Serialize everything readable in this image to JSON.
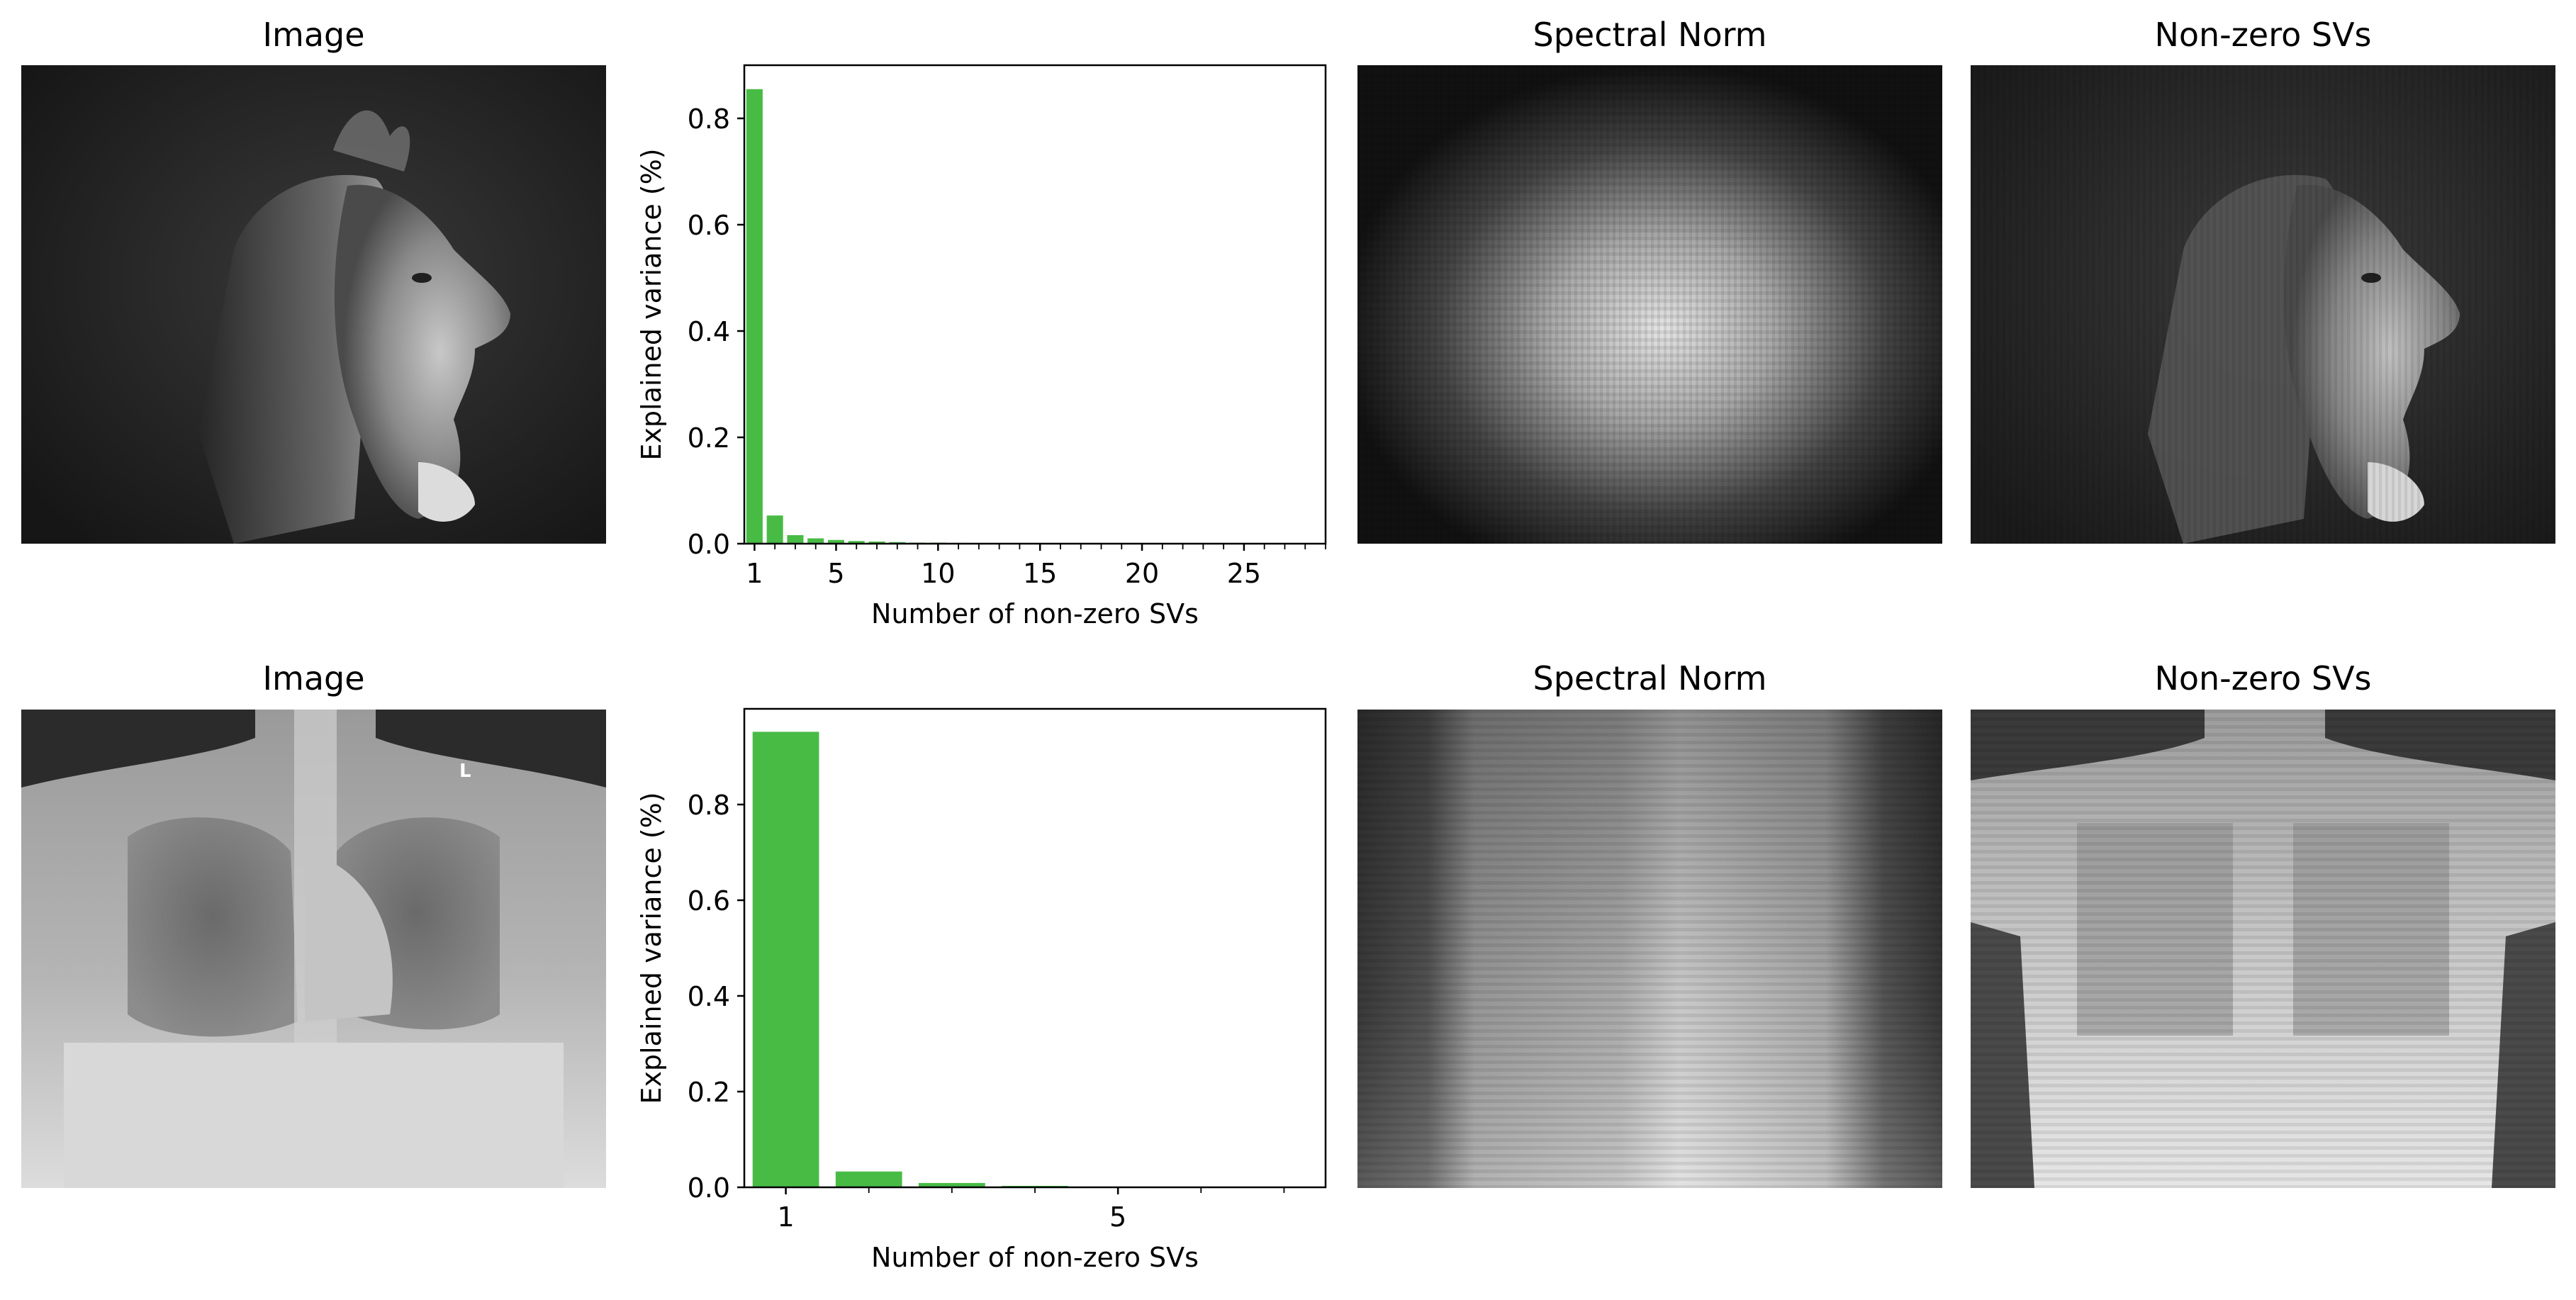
{
  "rows": [
    {
      "image_title": "Image",
      "spectral_title": "Spectral Norm",
      "nonzero_title": "Non-zero SVs",
      "subject": "lion",
      "chart_data": {
        "type": "bar",
        "categories": [
          1,
          2,
          3,
          4,
          5,
          6,
          7,
          8,
          9,
          10,
          11,
          12,
          13,
          14,
          15,
          16,
          17,
          18,
          19,
          20,
          21,
          22,
          23,
          24,
          25,
          26,
          27,
          28
        ],
        "values": [
          0.855,
          0.053,
          0.016,
          0.01,
          0.007,
          0.005,
          0.004,
          0.003,
          0.002,
          0.002,
          0.0015,
          0.0012,
          0.001,
          0.001,
          0.0008,
          0.0007,
          0.0006,
          0.0005,
          0.0005,
          0.0004,
          0.0004,
          0.0003,
          0.0003,
          0.0003,
          0.0002,
          0.0002,
          0.0002,
          0.0002
        ],
        "xlabel": "Number of non-zero SVs",
        "ylabel": "Explained variance (%)",
        "ylim": [
          0,
          0.9
        ],
        "xlim": [
          0.5,
          29
        ],
        "yticks": [
          0.0,
          0.2,
          0.4,
          0.6,
          0.8
        ],
        "ytick_labels": [
          "0.0",
          "0.2",
          "0.4",
          "0.6",
          "0.8"
        ],
        "xticks_labeled": [
          1,
          5,
          10,
          15,
          20,
          25
        ],
        "xtick_labels": [
          "1",
          "5",
          "10",
          "15",
          "20",
          "25"
        ],
        "xticks_minor_every": 1,
        "bar_width": 0.8,
        "color": "#48bb45"
      }
    },
    {
      "image_title": "Image",
      "spectral_title": "Spectral Norm",
      "nonzero_title": "Non-zero SVs",
      "subject": "chest x-ray",
      "xray_marker": "L",
      "chart_data": {
        "type": "bar",
        "categories": [
          1,
          2,
          3,
          4,
          5,
          6,
          7
        ],
        "values": [
          0.952,
          0.033,
          0.009,
          0.003,
          0.0015,
          0.0008,
          0.0005
        ],
        "xlabel": "Number of non-zero SVs",
        "ylabel": "Explained variance (%)",
        "ylim": [
          0,
          1.0
        ],
        "xlim": [
          0.5,
          7.5
        ],
        "yticks": [
          0.0,
          0.2,
          0.4,
          0.6,
          0.8
        ],
        "ytick_labels": [
          "0.0",
          "0.2",
          "0.4",
          "0.6",
          "0.8"
        ],
        "xticks_labeled": [
          1,
          5
        ],
        "xtick_labels": [
          "1",
          "5"
        ],
        "xticks_minor_every": 1,
        "bar_width": 0.8,
        "color": "#48bb45"
      }
    }
  ]
}
